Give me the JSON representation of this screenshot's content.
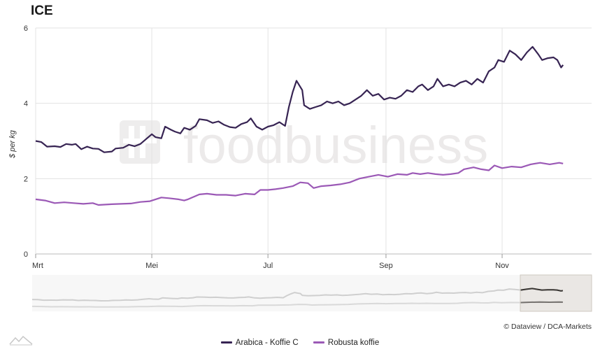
{
  "chart_data": {
    "type": "line",
    "title": "ICE",
    "ylabel": "$ per kg",
    "ylim": [
      0,
      6
    ],
    "yticks": [
      "0",
      "2",
      "4",
      "6"
    ],
    "xticks": [
      "Mrt",
      "Mei",
      "Jul",
      "Sep",
      "Nov"
    ],
    "xtick_positions": [
      0,
      61,
      122,
      184,
      245
    ],
    "x_range": [
      0,
      292
    ],
    "grid": true,
    "legend_position": "bottom-center",
    "credit": "© Dataview / DCA-Markets",
    "watermark": "foodbusiness",
    "series": [
      {
        "name": "Arabica - Koffie C",
        "color": "#372453",
        "points": [
          [
            0,
            3.0
          ],
          [
            3,
            2.97
          ],
          [
            6,
            2.85
          ],
          [
            10,
            2.86
          ],
          [
            13,
            2.84
          ],
          [
            16,
            2.92
          ],
          [
            19,
            2.9
          ],
          [
            21,
            2.92
          ],
          [
            24,
            2.78
          ],
          [
            27,
            2.85
          ],
          [
            30,
            2.8
          ],
          [
            33,
            2.79
          ],
          [
            36,
            2.7
          ],
          [
            40,
            2.72
          ],
          [
            42,
            2.8
          ],
          [
            46,
            2.82
          ],
          [
            49,
            2.9
          ],
          [
            52,
            2.86
          ],
          [
            55,
            2.92
          ],
          [
            58,
            3.05
          ],
          [
            61,
            3.18
          ],
          [
            63,
            3.1
          ],
          [
            66,
            3.07
          ],
          [
            68,
            3.38
          ],
          [
            71,
            3.3
          ],
          [
            73,
            3.25
          ],
          [
            76,
            3.2
          ],
          [
            78,
            3.35
          ],
          [
            81,
            3.3
          ],
          [
            84,
            3.4
          ],
          [
            86,
            3.58
          ],
          [
            90,
            3.55
          ],
          [
            93,
            3.48
          ],
          [
            96,
            3.52
          ],
          [
            99,
            3.43
          ],
          [
            102,
            3.37
          ],
          [
            105,
            3.35
          ],
          [
            108,
            3.45
          ],
          [
            111,
            3.5
          ],
          [
            113,
            3.6
          ],
          [
            116,
            3.38
          ],
          [
            119,
            3.3
          ],
          [
            122,
            3.38
          ],
          [
            125,
            3.42
          ],
          [
            128,
            3.5
          ],
          [
            131,
            3.4
          ],
          [
            133,
            3.9
          ],
          [
            135,
            4.3
          ],
          [
            137,
            4.6
          ],
          [
            140,
            4.35
          ],
          [
            141,
            3.95
          ],
          [
            144,
            3.85
          ],
          [
            147,
            3.9
          ],
          [
            150,
            3.95
          ],
          [
            153,
            4.05
          ],
          [
            156,
            4.0
          ],
          [
            159,
            4.05
          ],
          [
            162,
            3.95
          ],
          [
            165,
            4.0
          ],
          [
            168,
            4.1
          ],
          [
            171,
            4.2
          ],
          [
            174,
            4.35
          ],
          [
            177,
            4.2
          ],
          [
            180,
            4.25
          ],
          [
            183,
            4.1
          ],
          [
            186,
            4.15
          ],
          [
            189,
            4.12
          ],
          [
            192,
            4.2
          ],
          [
            195,
            4.35
          ],
          [
            198,
            4.3
          ],
          [
            201,
            4.45
          ],
          [
            203,
            4.5
          ],
          [
            206,
            4.35
          ],
          [
            209,
            4.45
          ],
          [
            211,
            4.65
          ],
          [
            214,
            4.45
          ],
          [
            217,
            4.5
          ],
          [
            220,
            4.45
          ],
          [
            223,
            4.55
          ],
          [
            226,
            4.6
          ],
          [
            229,
            4.5
          ],
          [
            232,
            4.65
          ],
          [
            235,
            4.55
          ],
          [
            238,
            4.85
          ],
          [
            241,
            4.95
          ],
          [
            243,
            5.15
          ],
          [
            246,
            5.1
          ],
          [
            249,
            5.4
          ],
          [
            252,
            5.3
          ],
          [
            255,
            5.15
          ],
          [
            258,
            5.35
          ],
          [
            261,
            5.5
          ],
          [
            264,
            5.3
          ],
          [
            266,
            5.15
          ],
          [
            269,
            5.2
          ],
          [
            272,
            5.22
          ],
          [
            274,
            5.15
          ],
          [
            276,
            4.95
          ],
          [
            277,
            5.02
          ]
        ]
      },
      {
        "name": "Robusta koffie",
        "color": "#9b59b6",
        "points": [
          [
            0,
            1.45
          ],
          [
            5,
            1.42
          ],
          [
            10,
            1.35
          ],
          [
            15,
            1.37
          ],
          [
            20,
            1.35
          ],
          [
            25,
            1.33
          ],
          [
            30,
            1.35
          ],
          [
            33,
            1.3
          ],
          [
            40,
            1.32
          ],
          [
            50,
            1.34
          ],
          [
            55,
            1.38
          ],
          [
            60,
            1.4
          ],
          [
            66,
            1.5
          ],
          [
            70,
            1.48
          ],
          [
            75,
            1.45
          ],
          [
            78,
            1.42
          ],
          [
            80,
            1.45
          ],
          [
            86,
            1.58
          ],
          [
            90,
            1.6
          ],
          [
            95,
            1.57
          ],
          [
            100,
            1.57
          ],
          [
            105,
            1.55
          ],
          [
            110,
            1.6
          ],
          [
            115,
            1.58
          ],
          [
            118,
            1.7
          ],
          [
            122,
            1.7
          ],
          [
            126,
            1.72
          ],
          [
            130,
            1.75
          ],
          [
            135,
            1.8
          ],
          [
            139,
            1.9
          ],
          [
            143,
            1.88
          ],
          [
            146,
            1.75
          ],
          [
            150,
            1.8
          ],
          [
            155,
            1.82
          ],
          [
            160,
            1.85
          ],
          [
            165,
            1.9
          ],
          [
            170,
            2.0
          ],
          [
            175,
            2.05
          ],
          [
            180,
            2.1
          ],
          [
            185,
            2.05
          ],
          [
            190,
            2.12
          ],
          [
            195,
            2.1
          ],
          [
            198,
            2.15
          ],
          [
            202,
            2.12
          ],
          [
            206,
            2.15
          ],
          [
            210,
            2.12
          ],
          [
            214,
            2.1
          ],
          [
            218,
            2.12
          ],
          [
            222,
            2.15
          ],
          [
            225,
            2.25
          ],
          [
            230,
            2.3
          ],
          [
            234,
            2.25
          ],
          [
            238,
            2.22
          ],
          [
            241,
            2.35
          ],
          [
            245,
            2.28
          ],
          [
            250,
            2.32
          ],
          [
            255,
            2.3
          ],
          [
            260,
            2.38
          ],
          [
            265,
            2.42
          ],
          [
            270,
            2.38
          ],
          [
            275,
            2.42
          ],
          [
            277,
            2.4
          ]
        ]
      }
    ]
  },
  "legend": {
    "items": [
      {
        "label": "Arabica - Koffie C",
        "color": "#372453"
      },
      {
        "label": "Robusta koffie",
        "color": "#9b59b6"
      }
    ]
  }
}
